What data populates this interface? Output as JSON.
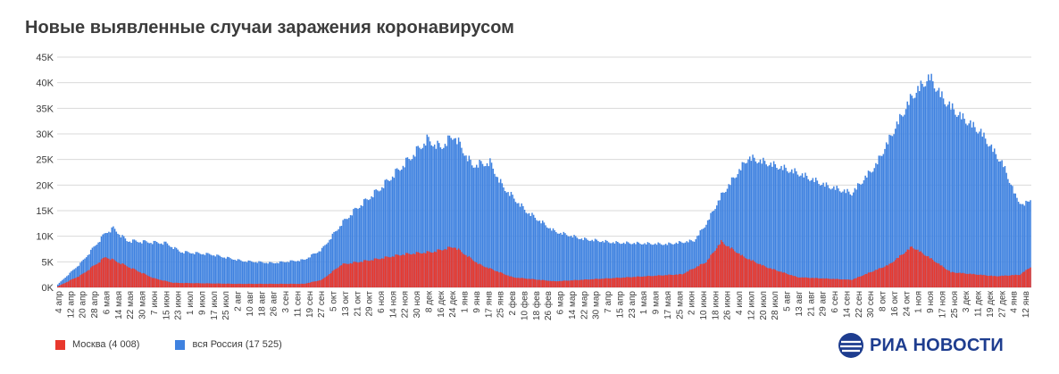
{
  "title": "Новые выявленные случаи заражения коронавирусом",
  "logo": {
    "text": "РИА НОВОСТИ"
  },
  "colors": {
    "moscow": "#e8382d",
    "russia": "#3f82e0"
  },
  "chart_data": {
    "type": "bar",
    "ylim": [
      0,
      45000
    ],
    "y_ticks": [
      {
        "value": 0,
        "label": "0K"
      },
      {
        "value": 5000,
        "label": "5K"
      },
      {
        "value": 10000,
        "label": "10K"
      },
      {
        "value": 15000,
        "label": "15K"
      },
      {
        "value": 20000,
        "label": "20K"
      },
      {
        "value": 25000,
        "label": "25K"
      },
      {
        "value": 30000,
        "label": "30K"
      },
      {
        "value": 35000,
        "label": "35K"
      },
      {
        "value": 40000,
        "label": "40K"
      },
      {
        "value": 45000,
        "label": "45K"
      }
    ],
    "x_start": "2020-04-04",
    "x_end": "2022-01-12",
    "x_tick_labels": [
      "4 апр",
      "12 апр",
      "20 апр",
      "28 апр",
      "6 мая",
      "14 мая",
      "22 мая",
      "30 мая",
      "7 июн",
      "15 июн",
      "23 июн",
      "1 июл",
      "9 июл",
      "17 июл",
      "25 июл",
      "2 авг",
      "10 авг",
      "18 авг",
      "26 авг",
      "3 сен",
      "11 сен",
      "19 сен",
      "27 сен",
      "5 окт",
      "13 окт",
      "21 окт",
      "29 окт",
      "6 ноя",
      "14 ноя",
      "22 ноя",
      "30 ноя",
      "8 дек",
      "16 дек",
      "24 дек",
      "1 янв",
      "9 янв",
      "17 янв",
      "25 янв",
      "2 фев",
      "10 фев",
      "18 фев",
      "26 фев",
      "6 мар",
      "14 мар",
      "22 мар",
      "30 мар",
      "7 апр",
      "15 апр",
      "23 апр",
      "1 мая",
      "9 мая",
      "17 мая",
      "25 мая",
      "2 июн",
      "10 июн",
      "18 июн",
      "26 июн",
      "4 июл",
      "12 июл",
      "20 июл",
      "28 июл",
      "5 авг",
      "13 авг",
      "21 авг",
      "29 авг",
      "6 сен",
      "14 сен",
      "22 сен",
      "30 сен",
      "8 окт",
      "16 окт",
      "24 окт",
      "1 ноя",
      "9 ноя",
      "17 ноя",
      "25 ноя",
      "3 дек",
      "11 дек",
      "19 дек",
      "27 дек",
      "4 янв",
      "12 янв"
    ],
    "series": [
      {
        "name": "Москва (4 008)",
        "key": "moscow",
        "approx_daily_values": [
          [
            "2020-04-04",
            200
          ],
          [
            "2020-04-20",
            2500
          ],
          [
            "2020-05-06",
            6000
          ],
          [
            "2020-05-14",
            5000
          ],
          [
            "2020-06-07",
            1800
          ],
          [
            "2020-06-20",
            900
          ],
          [
            "2020-08-01",
            700
          ],
          [
            "2020-09-15",
            700
          ],
          [
            "2020-09-27",
            1500
          ],
          [
            "2020-10-10",
            4500
          ],
          [
            "2020-11-01",
            5500
          ],
          [
            "2020-11-20",
            6500
          ],
          [
            "2020-12-10",
            7000
          ],
          [
            "2020-12-24",
            8000
          ],
          [
            "2021-01-10",
            4500
          ],
          [
            "2021-02-01",
            2000
          ],
          [
            "2021-03-01",
            1200
          ],
          [
            "2021-05-01",
            2200
          ],
          [
            "2021-05-25",
            2600
          ],
          [
            "2021-06-10",
            5000
          ],
          [
            "2021-06-20",
            9000
          ],
          [
            "2021-07-05",
            6000
          ],
          [
            "2021-07-20",
            4000
          ],
          [
            "2021-08-10",
            2000
          ],
          [
            "2021-09-15",
            1500
          ],
          [
            "2021-10-10",
            4500
          ],
          [
            "2021-10-25",
            8000
          ],
          [
            "2021-11-05",
            6000
          ],
          [
            "2021-11-20",
            3000
          ],
          [
            "2021-12-20",
            2200
          ],
          [
            "2022-01-05",
            2500
          ],
          [
            "2022-01-12",
            4008
          ]
        ]
      },
      {
        "name": "вся Россия (17 525)",
        "key": "russia",
        "approx_daily_values": [
          [
            "2020-04-04",
            600
          ],
          [
            "2020-04-20",
            5000
          ],
          [
            "2020-05-06",
            10800
          ],
          [
            "2020-05-11",
            11600
          ],
          [
            "2020-05-20",
            9200
          ],
          [
            "2020-06-15",
            8700
          ],
          [
            "2020-06-25",
            7000
          ],
          [
            "2020-07-15",
            6500
          ],
          [
            "2020-08-05",
            5200
          ],
          [
            "2020-08-25",
            4800
          ],
          [
            "2020-09-15",
            5400
          ],
          [
            "2020-09-27",
            7500
          ],
          [
            "2020-10-10",
            12500
          ],
          [
            "2020-10-20",
            15500
          ],
          [
            "2020-11-05",
            19500
          ],
          [
            "2020-11-25",
            25500
          ],
          [
            "2020-12-06",
            29000
          ],
          [
            "2020-12-15",
            27500
          ],
          [
            "2020-12-24",
            29900
          ],
          [
            "2021-01-05",
            24000
          ],
          [
            "2021-01-17",
            24500
          ],
          [
            "2021-01-25",
            20000
          ],
          [
            "2021-02-10",
            15000
          ],
          [
            "2021-03-01",
            11000
          ],
          [
            "2021-03-20",
            9500
          ],
          [
            "2021-04-10",
            8800
          ],
          [
            "2021-05-15",
            8500
          ],
          [
            "2021-06-02",
            9200
          ],
          [
            "2021-06-10",
            12500
          ],
          [
            "2021-06-20",
            18000
          ],
          [
            "2021-07-08",
            25500
          ],
          [
            "2021-07-20",
            24500
          ],
          [
            "2021-08-10",
            22500
          ],
          [
            "2021-08-29",
            20000
          ],
          [
            "2021-09-15",
            18500
          ],
          [
            "2021-10-01",
            24000
          ],
          [
            "2021-10-15",
            32000
          ],
          [
            "2021-10-25",
            37500
          ],
          [
            "2021-11-03",
            40500
          ],
          [
            "2021-11-06",
            41300
          ],
          [
            "2021-11-15",
            37000
          ],
          [
            "2021-11-25",
            34000
          ],
          [
            "2021-12-10",
            30500
          ],
          [
            "2021-12-25",
            24000
          ],
          [
            "2022-01-02",
            18000
          ],
          [
            "2022-01-07",
            16000
          ],
          [
            "2022-01-12",
            17525
          ]
        ]
      }
    ],
    "legend_position": "bottom-left",
    "grid": true
  }
}
